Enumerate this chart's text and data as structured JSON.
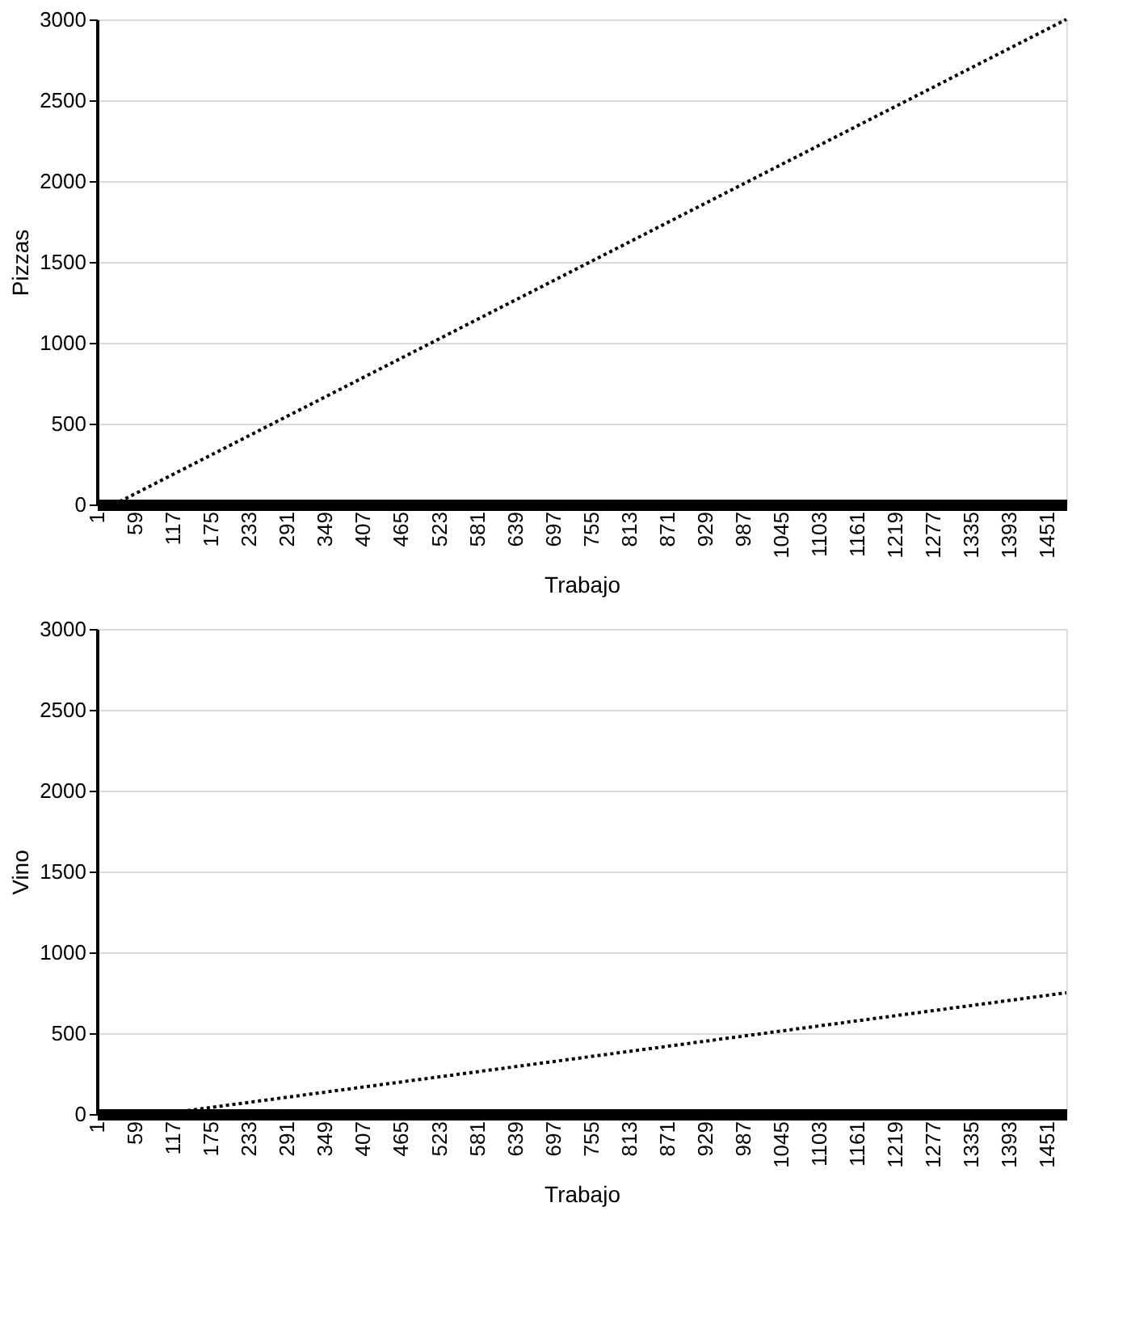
{
  "chart_data": [
    {
      "type": "line",
      "xlabel": "Trabajo",
      "ylabel": "Pizzas",
      "xlim": [
        1,
        1480
      ],
      "xticks": [
        1,
        59,
        117,
        175,
        233,
        291,
        349,
        407,
        465,
        523,
        581,
        639,
        697,
        755,
        813,
        871,
        929,
        987,
        1045,
        1103,
        1161,
        1219,
        1277,
        1335,
        1393,
        1451
      ],
      "ylim": [
        0,
        3000
      ],
      "yticks": [
        0,
        500,
        1000,
        1500,
        2000,
        2500,
        3000
      ],
      "grid": "y",
      "line_style": "dotted",
      "series": [
        {
          "color": "#000000",
          "x": [
            27,
            1480
          ],
          "values": [
            0,
            3000
          ]
        }
      ]
    },
    {
      "type": "line",
      "xlabel": "Trabajo",
      "ylabel": "Vino",
      "xlim": [
        1,
        1480
      ],
      "xticks": [
        1,
        59,
        117,
        175,
        233,
        291,
        349,
        407,
        465,
        523,
        581,
        639,
        697,
        755,
        813,
        871,
        929,
        987,
        1045,
        1103,
        1161,
        1219,
        1277,
        1335,
        1393,
        1451
      ],
      "ylim": [
        0,
        3000
      ],
      "yticks": [
        0,
        500,
        1000,
        1500,
        2000,
        2500,
        3000
      ],
      "grid": "y",
      "line_style": "dotted",
      "series": [
        {
          "color": "#000000",
          "x": [
            100,
            1480
          ],
          "values": [
            0,
            750
          ]
        }
      ]
    }
  ]
}
